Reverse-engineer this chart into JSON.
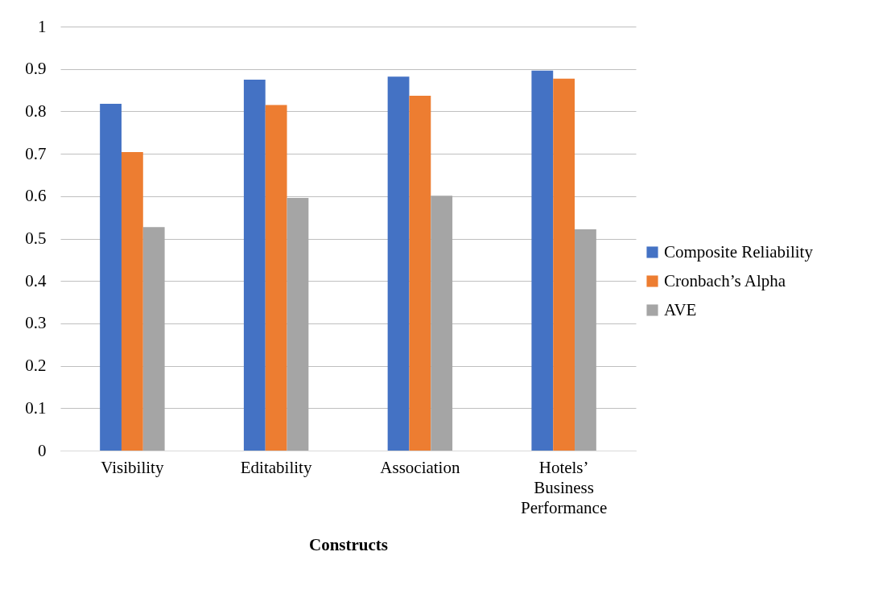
{
  "chart_data": {
    "type": "bar",
    "xlabel": "Constructs",
    "categories": [
      "Visibility",
      "Editability",
      "Association",
      "Hotels’ Business Performance"
    ],
    "series": [
      {
        "name": "Composite Reliability",
        "color": "#4472c4",
        "values": [
          0.818,
          0.875,
          0.882,
          0.896
        ]
      },
      {
        "name": "Cronbach’s Alpha",
        "color": "#ed7d31",
        "values": [
          0.704,
          0.815,
          0.837,
          0.877
        ]
      },
      {
        "name": "AVE",
        "color": "#a5a5a5",
        "values": [
          0.527,
          0.596,
          0.601,
          0.522
        ]
      }
    ],
    "ylim": [
      0,
      1
    ],
    "yticks": [
      0,
      0.1,
      0.2,
      0.3,
      0.4,
      0.5,
      0.6,
      0.7,
      0.8,
      0.9,
      1
    ],
    "grid": "y",
    "legend": "right"
  }
}
